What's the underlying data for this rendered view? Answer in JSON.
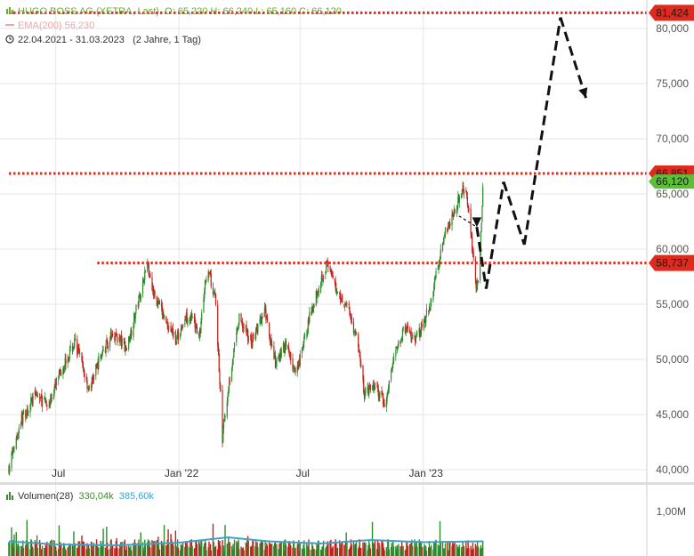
{
  "legend": {
    "instrument": "HUGO BOSS AG (XETRA, Last)",
    "ohlc": "O: 65,220  H: 66,240  L: 65,160  C: 66,120",
    "ema": "EMA(200)  56,230",
    "range": "22.04.2021 - 31.03.2023",
    "range_note": "(2 Jahre, 1 Tag)",
    "volume_label": "Volumen(28)",
    "volume_v1": "330,04k",
    "volume_v2": "385,60k"
  },
  "colors": {
    "up": "#2e8b2e",
    "down": "#c0201a",
    "level": "#e02a1d",
    "volume_ma": "#3fa2c8",
    "grid": "#e6e6e6"
  },
  "chart_data": {
    "type": "candlestick",
    "title": "HUGO BOSS AG (XETRA, Last)",
    "ylim": [
      39000,
      82500
    ],
    "y_ticks": [
      40000,
      45000,
      50000,
      55000,
      60000,
      65000,
      70000,
      75000,
      80000
    ],
    "y_tick_labels": [
      "40,000",
      "45,000",
      "50,000",
      "55,000",
      "60,000",
      "65,000",
      "70,000",
      "75,000",
      "80,000"
    ],
    "x_ticks": [
      {
        "label": "Jul",
        "date": "2021-07-01"
      },
      {
        "label": "Jan '22",
        "date": "2022-01-01"
      },
      {
        "label": "Jul",
        "date": "2022-07-01"
      },
      {
        "label": "Jan '23",
        "date": "2023-01-01"
      }
    ],
    "x_range": [
      "2021-04-22",
      "2023-12-01"
    ],
    "last_close": 66120,
    "last_close_label": "66,120",
    "levels": [
      {
        "value": 81424,
        "label": "81,424",
        "from": "2021-04-22"
      },
      {
        "value": 66851,
        "label": "66,851",
        "from": "2021-04-22"
      },
      {
        "value": 58737,
        "label": "58,737",
        "from": "2021-09-01"
      }
    ],
    "price_path": [
      [
        "2021-04-22",
        40200
      ],
      [
        "2021-05-10",
        44500
      ],
      [
        "2021-06-01",
        46800
      ],
      [
        "2021-06-20",
        45800
      ],
      [
        "2021-07-10",
        49200
      ],
      [
        "2021-07-30",
        51600
      ],
      [
        "2021-08-20",
        47200
      ],
      [
        "2021-09-05",
        50200
      ],
      [
        "2021-09-25",
        52400
      ],
      [
        "2021-10-15",
        51000
      ],
      [
        "2021-11-01",
        55200
      ],
      [
        "2021-11-15",
        58800
      ],
      [
        "2021-11-25",
        55800
      ],
      [
        "2021-12-10",
        53800
      ],
      [
        "2021-12-28",
        51800
      ],
      [
        "2022-01-15",
        54200
      ],
      [
        "2022-02-01",
        52200
      ],
      [
        "2022-02-12",
        58400
      ],
      [
        "2022-02-25",
        55200
      ],
      [
        "2022-03-07",
        43000
      ],
      [
        "2022-03-18",
        48500
      ],
      [
        "2022-04-01",
        53600
      ],
      [
        "2022-04-20",
        51600
      ],
      [
        "2022-05-10",
        54400
      ],
      [
        "2022-05-25",
        49400
      ],
      [
        "2022-06-10",
        51600
      ],
      [
        "2022-06-25",
        48400
      ],
      [
        "2022-07-15",
        53800
      ],
      [
        "2022-08-01",
        57300
      ],
      [
        "2022-08-10",
        58600
      ],
      [
        "2022-08-25",
        56200
      ],
      [
        "2022-09-10",
        54800
      ],
      [
        "2022-09-25",
        51600
      ],
      [
        "2022-10-05",
        46800
      ],
      [
        "2022-10-20",
        47600
      ],
      [
        "2022-11-05",
        45800
      ],
      [
        "2022-11-20",
        50800
      ],
      [
        "2022-12-05",
        52800
      ],
      [
        "2022-12-20",
        51600
      ],
      [
        "2023-01-10",
        54600
      ],
      [
        "2023-01-20",
        57800
      ],
      [
        "2023-02-01",
        61300
      ],
      [
        "2023-02-15",
        63300
      ],
      [
        "2023-02-28",
        65100
      ],
      [
        "2023-03-05",
        66100
      ],
      [
        "2023-03-15",
        60300
      ],
      [
        "2023-03-22",
        56200
      ],
      [
        "2023-03-26",
        57900
      ],
      [
        "2023-03-31",
        66120
      ]
    ],
    "projection": [
      [
        "2023-03-22",
        62000
      ],
      [
        "2023-04-05",
        56400
      ],
      [
        "2023-05-01",
        66100
      ],
      [
        "2023-06-01",
        60400
      ],
      [
        "2023-07-25",
        81000
      ],
      [
        "2023-09-01",
        73700
      ]
    ],
    "volume": {
      "label": "Volumen(28)",
      "ylim": [
        0,
        1400000
      ],
      "y_ticks": [
        1000000
      ],
      "y_tick_labels": [
        "1,00M"
      ],
      "ma_path": [
        [
          "2021-04-22",
          330000
        ],
        [
          "2021-07-01",
          260000
        ],
        [
          "2021-10-01",
          240000
        ],
        [
          "2022-01-01",
          300000
        ],
        [
          "2022-03-15",
          420000
        ],
        [
          "2022-05-15",
          330000
        ],
        [
          "2022-08-01",
          280000
        ],
        [
          "2022-10-15",
          360000
        ],
        [
          "2023-01-01",
          310000
        ],
        [
          "2023-03-31",
          330040
        ]
      ]
    }
  }
}
